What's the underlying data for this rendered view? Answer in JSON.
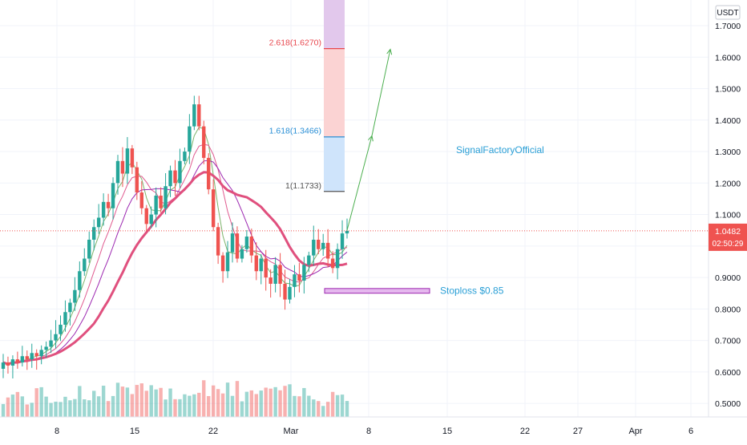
{
  "chart_data": {
    "type": "candlestick",
    "currency": "USDT",
    "price_axis": {
      "ticks": [
        "1.7000",
        "1.6000",
        "1.5000",
        "1.4000",
        "1.3000",
        "1.2000",
        "1.1000",
        "1.0000",
        "0.9000",
        "0.8000",
        "0.7000",
        "0.6000",
        "0.5000"
      ],
      "range": [
        0.47,
        1.83
      ]
    },
    "time_axis": {
      "ticks": [
        "8",
        "15",
        "22",
        "Mar",
        "8",
        "15",
        "22",
        "27",
        "Apr",
        "6"
      ]
    },
    "last_price": {
      "value": "1.0482",
      "countdown": "02:50:29",
      "price": 1.0482
    },
    "fib_levels": [
      {
        "label": "2.618(1.6270)",
        "price": 1.627,
        "color": "#e8474e"
      },
      {
        "label": "1.618(1.3466)",
        "price": 1.3466,
        "color": "#2a8fd6"
      },
      {
        "label": "1(1.1733)",
        "price": 1.1733,
        "color": "#555555"
      }
    ],
    "annotations": {
      "watermark": "SignalFactoryOfficial",
      "stoploss": "Stoploss $0.85"
    },
    "colors": {
      "up": "#26a69a",
      "down": "#ef5350",
      "ma_main": "#e0507e",
      "ma_purple": "#9c27b0",
      "ma_pink": "#e05a8f",
      "ma_green": "#7cb36b",
      "projection": "#4caf50",
      "fib_top": "#e2c8ec",
      "fib_mid": "#fbd3d3",
      "fib_low": "#cfe4fb",
      "stoploss_box": "#e5b8ee",
      "watermark": "#2a9fd6"
    },
    "ohlc_keyframes": [
      [
        0.61,
        0.63
      ],
      [
        0.63,
        0.62
      ],
      [
        0.62,
        0.64
      ],
      [
        0.64,
        0.63
      ],
      [
        0.63,
        0.65
      ],
      [
        0.65,
        0.64
      ],
      [
        0.64,
        0.66
      ],
      [
        0.66,
        0.65
      ],
      [
        0.65,
        0.67
      ],
      [
        0.67,
        0.68
      ],
      [
        0.68,
        0.7
      ],
      [
        0.7,
        0.72
      ],
      [
        0.72,
        0.75
      ],
      [
        0.75,
        0.79
      ],
      [
        0.79,
        0.82
      ],
      [
        0.82,
        0.86
      ],
      [
        0.86,
        0.92
      ],
      [
        0.92,
        0.96
      ],
      [
        0.96,
        1.02
      ],
      [
        1.02,
        1.06
      ],
      [
        1.06,
        1.09
      ],
      [
        1.09,
        1.14
      ],
      [
        1.14,
        1.12
      ],
      [
        1.12,
        1.2
      ],
      [
        1.2,
        1.27
      ],
      [
        1.27,
        1.23
      ],
      [
        1.23,
        1.31
      ],
      [
        1.31,
        1.25
      ],
      [
        1.25,
        1.17
      ],
      [
        1.17,
        1.12
      ],
      [
        1.12,
        1.07
      ],
      [
        1.07,
        1.1
      ],
      [
        1.1,
        1.16
      ],
      [
        1.16,
        1.12
      ],
      [
        1.12,
        1.19
      ],
      [
        1.19,
        1.24
      ],
      [
        1.24,
        1.2
      ],
      [
        1.2,
        1.27
      ],
      [
        1.27,
        1.3
      ],
      [
        1.3,
        1.38
      ],
      [
        1.38,
        1.45
      ],
      [
        1.45,
        1.38
      ],
      [
        1.38,
        1.28
      ],
      [
        1.28,
        1.18
      ],
      [
        1.18,
        1.06
      ],
      [
        1.06,
        0.97
      ],
      [
        0.97,
        0.92
      ],
      [
        0.92,
        0.98
      ],
      [
        0.98,
        1.04
      ],
      [
        1.04,
        0.96
      ],
      [
        0.96,
        0.99
      ],
      [
        0.99,
        1.03
      ],
      [
        1.03,
        0.97
      ],
      [
        0.97,
        0.92
      ],
      [
        0.92,
        0.96
      ],
      [
        0.96,
        0.9
      ],
      [
        0.9,
        0.88
      ],
      [
        0.88,
        0.94
      ],
      [
        0.94,
        0.88
      ],
      [
        0.88,
        0.83
      ],
      [
        0.83,
        0.87
      ],
      [
        0.87,
        0.91
      ],
      [
        0.91,
        0.89
      ],
      [
        0.89,
        0.94
      ],
      [
        0.94,
        0.97
      ],
      [
        0.97,
        1.02
      ],
      [
        1.02,
        0.99
      ],
      [
        0.99,
        1.01
      ],
      [
        1.01,
        0.96
      ],
      [
        0.96,
        0.93
      ],
      [
        0.93,
        0.99
      ],
      [
        0.99,
        1.04
      ],
      [
        1.04,
        1.0482
      ]
    ]
  }
}
